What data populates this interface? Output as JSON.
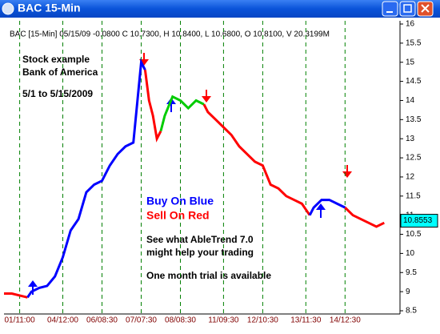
{
  "window": {
    "title": "BAC 15-Min"
  },
  "chart_data": {
    "type": "line",
    "header": "BAC [15-Min] 05/15/09 -0.0800 C 10.7300, H 10.8400, L 10.6800, O 10.8100, V 20.3199M",
    "annotations": [
      "Stock example",
      "Bank of America",
      "5/1 to 5/15/2009"
    ],
    "buy_label": "Buy On Blue",
    "sell_label": "Sell On Red",
    "promo": [
      "See what AbleTrend 7.0",
      "might help your trading",
      "One month trial is available"
    ],
    "last_price": 10.8553,
    "ylim": [
      8.5,
      16
    ],
    "yticks": [
      8.5,
      9,
      9.5,
      10,
      10.5,
      11,
      11.5,
      12,
      12.5,
      13,
      13.5,
      14,
      14.5,
      15,
      15.5,
      16
    ],
    "xlim": [
      0,
      100
    ],
    "xticks": [
      {
        "value": 4,
        "label": "01/11:00"
      },
      {
        "value": 15,
        "label": "04/12:00"
      },
      {
        "value": 25,
        "label": "06/08:30"
      },
      {
        "value": 35,
        "label": "07/07:30"
      },
      {
        "value": 45,
        "label": "08/08:30"
      },
      {
        "value": 56,
        "label": "11/09:30"
      },
      {
        "value": 66,
        "label": "12/10:30"
      },
      {
        "value": 77,
        "label": "13/11:30"
      },
      {
        "value": 87,
        "label": "14/12:30"
      }
    ],
    "series": [
      {
        "color": "#ff0000",
        "x": [
          0,
          2,
          4,
          6
        ],
        "values": [
          8.95,
          8.95,
          8.9,
          8.85
        ]
      },
      {
        "color": "#0000ff",
        "x": [
          6,
          7,
          9,
          11,
          13,
          15,
          17,
          19,
          21,
          23,
          25,
          27,
          29,
          31,
          33,
          35,
          36
        ],
        "values": [
          8.85,
          9.0,
          9.1,
          9.15,
          9.4,
          9.9,
          10.6,
          10.9,
          11.6,
          11.8,
          11.9,
          12.3,
          12.6,
          12.8,
          12.9,
          15.0,
          14.8
        ]
      },
      {
        "color": "#ff0000",
        "x": [
          36,
          37,
          38,
          39,
          40
        ],
        "values": [
          14.8,
          14.0,
          13.6,
          13.0,
          13.2
        ]
      },
      {
        "color": "#00cc00",
        "x": [
          40,
          41,
          43,
          45,
          47,
          49,
          51
        ],
        "values": [
          13.2,
          13.6,
          14.1,
          14.0,
          13.8,
          14.0,
          13.9
        ]
      },
      {
        "color": "#ff0000",
        "x": [
          51,
          52,
          54,
          56,
          58,
          60,
          62,
          64,
          66,
          68,
          70,
          72,
          74,
          76,
          78
        ],
        "values": [
          13.9,
          13.7,
          13.5,
          13.3,
          13.1,
          12.8,
          12.6,
          12.4,
          12.3,
          11.8,
          11.7,
          11.5,
          11.4,
          11.3,
          11.0
        ]
      },
      {
        "color": "#0000ff",
        "x": [
          78,
          79,
          81,
          83,
          85,
          87
        ],
        "values": [
          11.0,
          11.2,
          11.4,
          11.4,
          11.3,
          11.2
        ]
      },
      {
        "color": "#ff0000",
        "x": [
          87,
          89,
          91,
          93,
          95,
          97
        ],
        "values": [
          11.2,
          11.0,
          10.9,
          10.8,
          10.7,
          10.8
        ]
      }
    ]
  }
}
